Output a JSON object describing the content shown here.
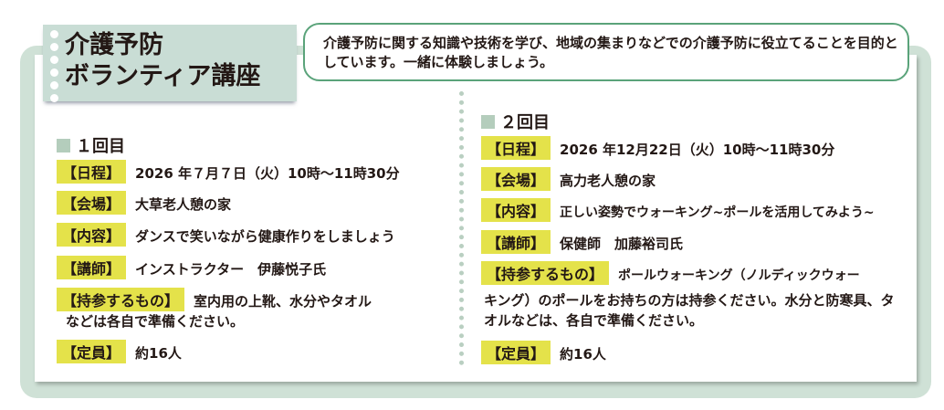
{
  "title": {
    "line1": "介護予防",
    "line2": "ボランティア講座"
  },
  "description": "介護予防に関する知識や技術を学び、地域の集まりなどでの介護予防に役立てることを目的としています。一緒に体験しましょう。",
  "session1": {
    "heading": "１回目",
    "rows": [
      {
        "label": "【日程】",
        "value": "2026 年７月７日（火）10時～11時30分"
      },
      {
        "label": "【会場】",
        "value": "大草老人憩の家"
      },
      {
        "label": "【内容】",
        "value": "ダンスで笑いながら健康作りをしましょう"
      },
      {
        "label": "【講師】",
        "value": "インストラクター　伊藤悦子氏"
      },
      {
        "label": "【持参するもの】",
        "value": "室内用の上靴、水分やタオル",
        "cont": "などは各自で準備ください。"
      },
      {
        "label": "【定員】",
        "value": "約16人"
      }
    ]
  },
  "session2": {
    "heading": "２回目",
    "rows": [
      {
        "label": "【日程】",
        "value": "2026 年12月22日（火）10時～11時30分"
      },
      {
        "label": "【会場】",
        "value": "高力老人憩の家"
      },
      {
        "label": "【内容】",
        "value": "正しい姿勢でウォーキング~ポールを活用してみよう~"
      },
      {
        "label": "【講師】",
        "value": "保健師　加藤裕司氏"
      },
      {
        "label": "【持参するもの】",
        "value": "ポールウォーキング（ノルディックウォー",
        "cont": "キング）のポールをお持ちの方は持参ください。水分と防寒具、タオルなどは、各自で準備ください。"
      },
      {
        "label": "【定員】",
        "value": "約16人"
      }
    ]
  },
  "colors": {
    "frame": "#cfe1d6",
    "label": "#e4e24a",
    "accent": "#5aa37a"
  }
}
